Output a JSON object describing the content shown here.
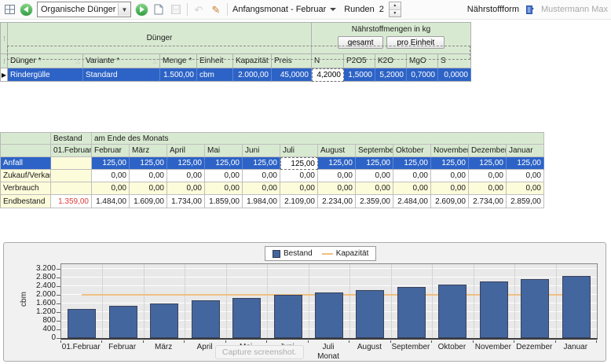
{
  "toolbar": {
    "entity_selector": "Organische Dünger",
    "anfangsmonat_label": "Anfangsmonat - Februar",
    "runden_label": "Runden",
    "runden_value": "2",
    "naehrstoffform_label": "Nährstoffform",
    "user_name": "Mustermann Max"
  },
  "fertilizer_grid": {
    "group_duenger": "Dünger",
    "group_naehrstoff": "Nährstoffmengen in kg",
    "btn_gesamt": "gesamt",
    "btn_pro_einheit": "pro Einheit",
    "columns": [
      "Dünger *",
      "Variante *",
      "Menge *",
      "Einheit",
      "Kapazität *",
      "Preis",
      "N",
      "P2O5",
      "K2O",
      "MgO",
      "S"
    ],
    "row": {
      "duenger": "Rindergülle",
      "variante": "Standard",
      "menge": "1.500,00",
      "einheit": "cbm",
      "kapazitaet": "2.000,00",
      "preis": "45,0000",
      "n": "4,2000",
      "p2o5": "1,5000",
      "k2o": "5,2000",
      "mgo": "0,7000",
      "s": "0,0000"
    }
  },
  "monthly_table": {
    "bestand_header": "Bestand",
    "period_header": "am Ende des Monats",
    "start_col": "01.Februar",
    "months": [
      "Februar",
      "März",
      "April",
      "Mai",
      "Juni",
      "Juli",
      "August",
      "September",
      "Oktober",
      "November",
      "Dezember",
      "Januar"
    ],
    "rows": [
      {
        "label": "Anfall",
        "start": "",
        "row_style": "selected",
        "active_month_index": 5,
        "values": [
          "125,00",
          "125,00",
          "125,00",
          "125,00",
          "125,00",
          "125,00",
          "125,00",
          "125,00",
          "125,00",
          "125,00",
          "125,00",
          "125,00"
        ]
      },
      {
        "label": "Zukauf/Verkauf",
        "start": "",
        "row_style": "white",
        "values": [
          "0,00",
          "0,00",
          "0,00",
          "0,00",
          "0,00",
          "0,00",
          "0,00",
          "0,00",
          "0,00",
          "0,00",
          "0,00",
          "0,00"
        ]
      },
      {
        "label": "Verbrauch",
        "start": "",
        "row_style": "yellow",
        "values": [
          "0,00",
          "0,00",
          "0,00",
          "0,00",
          "0,00",
          "0,00",
          "0,00",
          "0,00",
          "0,00",
          "0,00",
          "0,00",
          "0,00"
        ]
      },
      {
        "label": "Endbestand",
        "start": "1.359,00",
        "row_style": "white",
        "start_negative": true,
        "values": [
          "1.484,00",
          "1.609,00",
          "1.734,00",
          "1.859,00",
          "1.984,00",
          "2.109,00",
          "2.234,00",
          "2.359,00",
          "2.484,00",
          "2.609,00",
          "2.734,00",
          "2.859,00"
        ]
      }
    ]
  },
  "chart_data": {
    "type": "bar",
    "categories": [
      "01.Februar",
      "Februar",
      "März",
      "April",
      "Mai",
      "Juni",
      "Juli",
      "August",
      "September",
      "Oktober",
      "November",
      "Dezember",
      "Januar"
    ],
    "series": [
      {
        "name": "Bestand",
        "type": "bar",
        "color": "#44669E",
        "values": [
          1359,
          1484,
          1609,
          1734,
          1859,
          1984,
          2109,
          2234,
          2359,
          2484,
          2609,
          2734,
          2859
        ]
      },
      {
        "name": "Kapazität",
        "type": "line",
        "color": "#EFC083",
        "values": [
          2000,
          2000,
          2000,
          2000,
          2000,
          2000,
          2000,
          2000,
          2000,
          2000,
          2000,
          2000,
          2000
        ]
      }
    ],
    "title": "",
    "xlabel": "Monat",
    "ylabel": "cbm",
    "ylim": [
      0,
      3200
    ],
    "yticks": [
      0,
      400,
      800,
      1200,
      1600,
      2000,
      2400,
      2800,
      3200
    ],
    "ytick_labels": [
      "0",
      "400",
      "800",
      "1.200",
      "1.600",
      "2.000",
      "2.400",
      "2.800",
      "3.200"
    ],
    "legend_position": "top",
    "grid": true
  },
  "overlay": {
    "tooltip": "Capture screenshot."
  }
}
